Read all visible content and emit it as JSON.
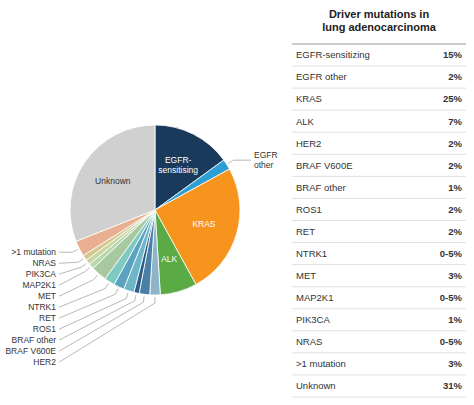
{
  "chart_data": {
    "type": "pie",
    "title": "Driver mutations in\nlung adenocarcinoma",
    "categories": [
      "EGFR-\nsensitising",
      "EGFR\nother",
      "KRAS",
      "ALK",
      "HER2",
      "BRAF V600E",
      "BRAF other",
      "ROS1",
      "RET",
      "NTRK1",
      "MET",
      "MAP2K1",
      "PIK3CA",
      "NRAS",
      ">1 mutation",
      "Unknown"
    ],
    "values": [
      15,
      2,
      25,
      7,
      2,
      2,
      1,
      2,
      2,
      2,
      3,
      1,
      1,
      1,
      3,
      31
    ],
    "colors": [
      "#1a3a5c",
      "#2e9fd4",
      "#f7941d",
      "#5aaa46",
      "#8db4c8",
      "#4a7fa5",
      "#2a5f8a",
      "#6eb5c8",
      "#5ba3c0",
      "#7ecac0",
      "#a8c8a0",
      "#b8d8b0",
      "#c8d8a0",
      "#d4c890",
      "#e8b090",
      "#d0d0d0"
    ],
    "table": [
      [
        "EGFR-sensitizing",
        "15%"
      ],
      [
        "EGFR other",
        "2%"
      ],
      [
        "KRAS",
        "25%"
      ],
      [
        "ALK",
        "7%"
      ],
      [
        "HER2",
        "2%"
      ],
      [
        "BRAF V600E",
        "2%"
      ],
      [
        "BRAF other",
        "1%"
      ],
      [
        "ROS1",
        "2%"
      ],
      [
        "RET",
        "2%"
      ],
      [
        "NTRK1",
        "0-5%"
      ],
      [
        "MET",
        "3%"
      ],
      [
        "MAP2K1",
        "0-5%"
      ],
      [
        "PIK3CA",
        "1%"
      ],
      [
        "NRAS",
        "0-5%"
      ],
      [
        ">1 mutation",
        "3%"
      ],
      [
        "Unknown",
        "31%"
      ]
    ]
  }
}
